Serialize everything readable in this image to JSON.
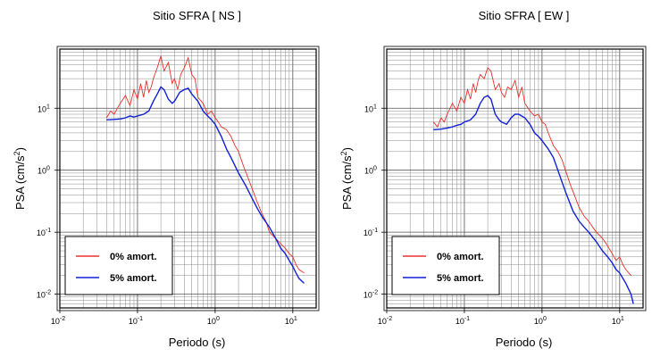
{
  "chart_data": [
    {
      "type": "line",
      "title": "Sitio SFRA [ NS ]",
      "xlabel": "Periodo (s)",
      "ylabel": "PSA (cm/s2)",
      "xscale": "log",
      "yscale": "log",
      "xlim": [
        0.01,
        20
      ],
      "ylim": [
        0.006,
        90
      ],
      "grid": true,
      "legend_position": "bottom-left",
      "xticks": [
        {
          "base": "10",
          "exp": "-2"
        },
        {
          "base": "10",
          "exp": "-1"
        },
        {
          "base": "10",
          "exp": "0"
        },
        {
          "base": "10",
          "exp": "1"
        }
      ],
      "yticks": [
        {
          "base": "10",
          "exp": "-2"
        },
        {
          "base": "10",
          "exp": "-1"
        },
        {
          "base": "10",
          "exp": "0"
        },
        {
          "base": "10",
          "exp": "1"
        }
      ],
      "series": [
        {
          "name": "0% amort.",
          "color": "#e8302a",
          "x": [
            0.04,
            0.045,
            0.05,
            0.055,
            0.06,
            0.07,
            0.08,
            0.09,
            0.1,
            0.11,
            0.12,
            0.13,
            0.14,
            0.15,
            0.16,
            0.18,
            0.2,
            0.22,
            0.25,
            0.28,
            0.3,
            0.33,
            0.36,
            0.4,
            0.45,
            0.5,
            0.55,
            0.6,
            0.7,
            0.8,
            0.9,
            1.0,
            1.1,
            1.2,
            1.4,
            1.6,
            1.8,
            2.0,
            2.3,
            2.6,
            3.0,
            3.5,
            4.0,
            4.5,
            5.0,
            6.0,
            7.0,
            8.0,
            9.0,
            10.0,
            11.0,
            12.0,
            14.0
          ],
          "y": [
            7,
            9,
            8,
            10,
            12,
            16,
            11,
            20,
            14,
            25,
            15,
            28,
            18,
            22,
            30,
            45,
            70,
            40,
            55,
            25,
            30,
            20,
            35,
            45,
            65,
            35,
            30,
            15,
            12,
            8,
            9,
            7,
            6,
            5,
            4.5,
            3.5,
            2.5,
            2.0,
            1.2,
            0.8,
            0.5,
            0.3,
            0.2,
            0.15,
            0.1,
            0.08,
            0.065,
            0.055,
            0.045,
            0.04,
            0.03,
            0.025,
            0.022
          ]
        },
        {
          "name": "5% amort.",
          "color": "#1020d8",
          "x": [
            0.04,
            0.05,
            0.06,
            0.07,
            0.08,
            0.09,
            0.1,
            0.12,
            0.14,
            0.16,
            0.18,
            0.2,
            0.22,
            0.25,
            0.28,
            0.3,
            0.35,
            0.4,
            0.45,
            0.5,
            0.6,
            0.7,
            0.8,
            0.9,
            1.0,
            1.2,
            1.4,
            1.6,
            2.0,
            2.5,
            3.0,
            3.5,
            4.0,
            5.0,
            6.0,
            7.0,
            8.0,
            9.0,
            10.0,
            11.0,
            12.0,
            14.0
          ],
          "y": [
            6.5,
            6.6,
            6.7,
            7.0,
            7.5,
            7.2,
            7.5,
            8.0,
            9.0,
            13.0,
            17.0,
            22.0,
            20.0,
            14.0,
            12.0,
            13.0,
            18.0,
            20.0,
            21.0,
            17.0,
            13.0,
            9.0,
            7.5,
            6.5,
            5.5,
            3.5,
            2.2,
            1.6,
            0.9,
            0.55,
            0.35,
            0.24,
            0.18,
            0.12,
            0.08,
            0.055,
            0.045,
            0.035,
            0.028,
            0.022,
            0.018,
            0.015
          ]
        }
      ]
    },
    {
      "type": "line",
      "title": "Sitio SFRA [ EW ]",
      "xlabel": "Periodo (s)",
      "ylabel": "PSA (cm/s2)",
      "xscale": "log",
      "yscale": "log",
      "xlim": [
        0.01,
        20
      ],
      "ylim": [
        0.006,
        90
      ],
      "grid": true,
      "legend_position": "bottom-left",
      "xticks": [
        {
          "base": "10",
          "exp": "-2"
        },
        {
          "base": "10",
          "exp": "-1"
        },
        {
          "base": "10",
          "exp": "0"
        },
        {
          "base": "10",
          "exp": "1"
        }
      ],
      "yticks": [
        {
          "base": "10",
          "exp": "-2"
        },
        {
          "base": "10",
          "exp": "-1"
        },
        {
          "base": "10",
          "exp": "0"
        },
        {
          "base": "10",
          "exp": "1"
        }
      ],
      "series": [
        {
          "name": "0% amort.",
          "color": "#e8302a",
          "x": [
            0.04,
            0.045,
            0.05,
            0.055,
            0.06,
            0.07,
            0.08,
            0.09,
            0.1,
            0.11,
            0.12,
            0.13,
            0.14,
            0.15,
            0.16,
            0.18,
            0.2,
            0.22,
            0.25,
            0.28,
            0.3,
            0.33,
            0.36,
            0.4,
            0.45,
            0.5,
            0.55,
            0.6,
            0.7,
            0.8,
            0.9,
            1.0,
            1.1,
            1.2,
            1.4,
            1.6,
            1.8,
            2.0,
            2.3,
            2.6,
            3.0,
            3.5,
            4.0,
            4.5,
            5.0,
            6.0,
            7.0,
            8.0,
            9.0,
            10.0,
            11.0,
            12.0,
            14.0
          ],
          "y": [
            6,
            5,
            7,
            6,
            8,
            12,
            9,
            15,
            12,
            20,
            14,
            25,
            18,
            28,
            35,
            30,
            45,
            40,
            20,
            25,
            18,
            15,
            22,
            20,
            28,
            15,
            22,
            12,
            9,
            7.5,
            8,
            6,
            5.5,
            4.0,
            2.5,
            2.0,
            1.5,
            1.0,
            0.6,
            0.4,
            0.25,
            0.18,
            0.15,
            0.12,
            0.1,
            0.08,
            0.06,
            0.045,
            0.035,
            0.04,
            0.03,
            0.025,
            0.02
          ]
        },
        {
          "name": "5% amort.",
          "color": "#1020d8",
          "x": [
            0.04,
            0.05,
            0.06,
            0.07,
            0.08,
            0.09,
            0.1,
            0.12,
            0.14,
            0.16,
            0.18,
            0.2,
            0.22,
            0.25,
            0.28,
            0.3,
            0.35,
            0.4,
            0.45,
            0.5,
            0.6,
            0.7,
            0.8,
            0.9,
            1.0,
            1.2,
            1.4,
            1.6,
            2.0,
            2.5,
            3.0,
            3.5,
            4.0,
            5.0,
            6.0,
            7.0,
            8.0,
            9.0,
            10.0,
            11.0,
            12.0,
            14.0,
            15.0
          ],
          "y": [
            4.5,
            4.6,
            4.8,
            5.0,
            5.3,
            5.5,
            6.0,
            6.5,
            8.0,
            12.0,
            15.0,
            16.0,
            14.0,
            8.0,
            6.5,
            6.0,
            5.5,
            7.0,
            8.0,
            8.0,
            7.0,
            5.5,
            4.0,
            3.5,
            3.0,
            2.2,
            1.6,
            1.0,
            0.45,
            0.22,
            0.15,
            0.12,
            0.1,
            0.07,
            0.05,
            0.04,
            0.032,
            0.025,
            0.022,
            0.018,
            0.015,
            0.01,
            0.007
          ]
        }
      ]
    }
  ]
}
